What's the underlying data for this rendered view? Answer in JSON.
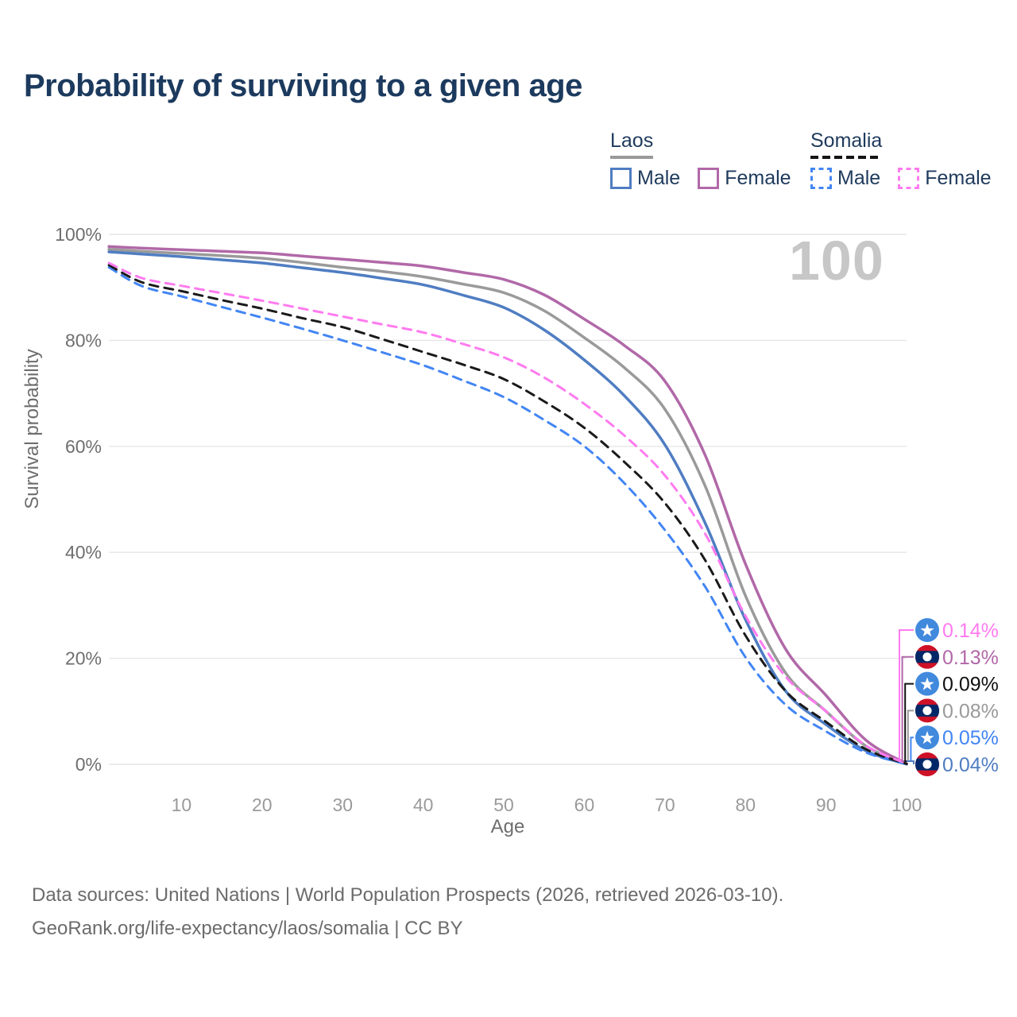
{
  "title": "Probability of surviving to a given age",
  "watermark_age": "100",
  "legend": {
    "groups": [
      {
        "name": "Laos",
        "style": "solid",
        "underline_color": "#9a9a9a",
        "items": [
          {
            "label": "Male",
            "color": "#4f7dc2"
          },
          {
            "label": "Female",
            "color": "#b168a8"
          }
        ]
      },
      {
        "name": "Somalia",
        "style": "dashed",
        "underline_color": "#141414",
        "items": [
          {
            "label": "Male",
            "color": "#4285f4"
          },
          {
            "label": "Female",
            "color": "#ff7bf0"
          }
        ]
      }
    ]
  },
  "chart_data": {
    "type": "line",
    "title": "Probability of surviving to a given age",
    "xlabel": "Age",
    "ylabel": "Survival probability",
    "xlim": [
      1,
      100
    ],
    "ylim": [
      0,
      100
    ],
    "grid": "horizontal",
    "legend_position": "top-right",
    "x_ticks": [
      10,
      20,
      30,
      40,
      50,
      60,
      70,
      80,
      90,
      100
    ],
    "y_ticks": [
      {
        "v": 0,
        "label": "0%"
      },
      {
        "v": 20,
        "label": "20%"
      },
      {
        "v": 40,
        "label": "40%"
      },
      {
        "v": 60,
        "label": "60%"
      },
      {
        "v": 80,
        "label": "80%"
      },
      {
        "v": 100,
        "label": "100%"
      }
    ],
    "x": [
      1,
      5,
      10,
      15,
      20,
      25,
      30,
      35,
      40,
      45,
      50,
      55,
      60,
      65,
      70,
      75,
      80,
      85,
      90,
      95,
      100
    ],
    "series": [
      {
        "name": "Laos",
        "country": "Laos",
        "sex": "both",
        "color": "#9a9a9a",
        "dash": false,
        "values": [
          97.2,
          96.8,
          96.4,
          96.0,
          95.5,
          94.7,
          93.8,
          93.0,
          92.0,
          90.6,
          89.0,
          85.6,
          80.5,
          74.8,
          67.0,
          52.5,
          31.8,
          17.2,
          10.0,
          3.4,
          0.08
        ]
      },
      {
        "name": "Laos Male",
        "country": "Laos",
        "sex": "male",
        "color": "#4f7dc2",
        "dash": false,
        "values": [
          96.7,
          96.3,
          95.8,
          95.2,
          94.6,
          93.7,
          92.8,
          91.7,
          90.5,
          88.5,
          86.2,
          82.0,
          76.3,
          69.5,
          60.3,
          45.5,
          27.3,
          13.8,
          7.5,
          2.5,
          0.04
        ]
      },
      {
        "name": "Laos Female",
        "country": "Laos",
        "sex": "female",
        "color": "#b168a8",
        "dash": false,
        "values": [
          97.7,
          97.4,
          97.1,
          96.8,
          96.5,
          95.9,
          95.3,
          94.7,
          94.0,
          92.8,
          91.5,
          88.6,
          84.0,
          79.0,
          72.3,
          58.3,
          37.8,
          21.7,
          13.0,
          4.5,
          0.13
        ]
      },
      {
        "name": "Somalia Male",
        "country": "Somalia",
        "sex": "male",
        "color": "#4285f4",
        "dash": true,
        "values": [
          93.8,
          90.3,
          88.3,
          86.3,
          84.3,
          82.2,
          80.0,
          77.7,
          75.3,
          72.4,
          69.3,
          65.0,
          60.0,
          53.0,
          44.2,
          33.5,
          20.2,
          11.2,
          6.2,
          2.2,
          0.05
        ]
      },
      {
        "name": "Somalia",
        "country": "Somalia",
        "sex": "both",
        "color": "#1a1a1a",
        "dash": true,
        "values": [
          94.2,
          91.0,
          89.3,
          87.6,
          86.0,
          84.2,
          82.5,
          80.2,
          77.8,
          75.4,
          72.7,
          68.5,
          63.5,
          57.0,
          49.3,
          38.5,
          24.3,
          13.8,
          8.0,
          2.8,
          0.09
        ]
      },
      {
        "name": "Somalia Female",
        "country": "Somalia",
        "sex": "female",
        "color": "#ff7bf0",
        "dash": true,
        "values": [
          94.6,
          91.8,
          90.3,
          88.9,
          87.5,
          86.0,
          84.5,
          83.0,
          81.5,
          79.3,
          76.8,
          73.0,
          68.0,
          62.0,
          54.5,
          43.5,
          28.0,
          16.5,
          10.0,
          3.5,
          0.14
        ]
      }
    ],
    "end_labels": [
      {
        "value": "0.14%",
        "series": "Somalia Female",
        "flag": "somalia",
        "color": "#ff7bf0"
      },
      {
        "value": "0.13%",
        "series": "Laos Female",
        "flag": "laos",
        "color": "#b168a8"
      },
      {
        "value": "0.09%",
        "series": "Somalia",
        "flag": "somalia",
        "color": "#111111"
      },
      {
        "value": "0.08%",
        "series": "Laos",
        "flag": "laos",
        "color": "#9a9a9a"
      },
      {
        "value": "0.05%",
        "series": "Somalia Male",
        "flag": "somalia",
        "color": "#4285f4"
      },
      {
        "value": "0.04%",
        "series": "Laos Male",
        "flag": "laos",
        "color": "#4f7dc2"
      }
    ],
    "flag_colors": {
      "somalia_blue": "#4189dd",
      "somalia_star": "#ffffff",
      "laos_red": "#ce1126",
      "laos_blue": "#002868",
      "laos_circle": "#ffffff"
    }
  },
  "footer": {
    "line1": "Data sources: United Nations | World Population Prospects (2026, retrieved 2026-03-10).",
    "line2": "GeoRank.org/life-expectancy/laos/somalia | CC BY"
  }
}
